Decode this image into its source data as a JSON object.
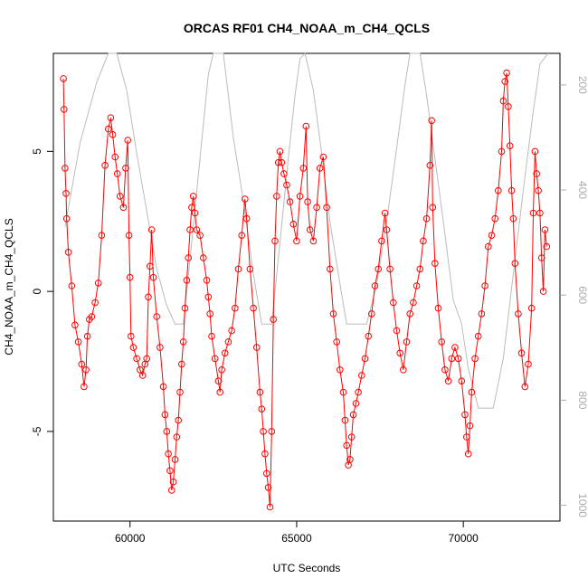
{
  "chart_data": {
    "type": "line",
    "title": "ORCAS RF01 CH4_NOAA_m_CH4_QCLS",
    "xlabel": "UTC Seconds",
    "ylabel": "CH4_NOAA_m_CH4_QCLS",
    "xlim": [
      57700,
      72900
    ],
    "ylim": [
      -8.2,
      8.5
    ],
    "y2lim": [
      1030,
      140
    ],
    "x_ticks": [
      60000,
      65000,
      70000
    ],
    "x_tick_labels": [
      "60000",
      "65000",
      "70000"
    ],
    "y_ticks": [
      -5,
      0,
      5
    ],
    "y_tick_labels": [
      "-5",
      "0",
      "5"
    ],
    "y2_ticks": [
      200,
      400,
      600,
      800,
      1000
    ],
    "y2_tick_labels": [
      "200",
      "400",
      "600",
      "800",
      "1000"
    ],
    "grid": false,
    "colors": {
      "primary": "#ff0000",
      "secondary": "#bbbbbb"
    },
    "series": [
      {
        "role": "primary",
        "marker": "open-circle",
        "points": [
          [
            58000,
            7.6
          ],
          [
            58020,
            6.5
          ],
          [
            58050,
            4.4
          ],
          [
            58080,
            3.5
          ],
          [
            58100,
            2.6
          ],
          [
            58150,
            1.4
          ],
          [
            58250,
            0.2
          ],
          [
            58350,
            -1.2
          ],
          [
            58450,
            -1.8
          ],
          [
            58550,
            -2.6
          ],
          [
            58620,
            -3.4
          ],
          [
            58680,
            -2.8
          ],
          [
            58720,
            -1.6
          ],
          [
            58780,
            -1.0
          ],
          [
            58850,
            -0.9
          ],
          [
            58950,
            -0.4
          ],
          [
            59050,
            0.3
          ],
          [
            59150,
            2.0
          ],
          [
            59250,
            4.5
          ],
          [
            59350,
            5.8
          ],
          [
            59420,
            6.2
          ],
          [
            59480,
            5.6
          ],
          [
            59550,
            4.8
          ],
          [
            59620,
            4.2
          ],
          [
            59700,
            3.4
          ],
          [
            59800,
            3.0
          ],
          [
            59870,
            4.4
          ],
          [
            59930,
            5.4
          ],
          [
            59970,
            2.0
          ],
          [
            60000,
            0.5
          ],
          [
            60030,
            -1.6
          ],
          [
            60100,
            -2.0
          ],
          [
            60200,
            -2.4
          ],
          [
            60300,
            -2.8
          ],
          [
            60380,
            -3.0
          ],
          [
            60450,
            -2.6
          ],
          [
            60500,
            -2.4
          ],
          [
            60550,
            -0.2
          ],
          [
            60600,
            0.9
          ],
          [
            60650,
            2.2
          ],
          [
            60700,
            0.5
          ],
          [
            60800,
            -0.9
          ],
          [
            60900,
            -2.0
          ],
          [
            61000,
            -3.4
          ],
          [
            61050,
            -4.4
          ],
          [
            61100,
            -5.0
          ],
          [
            61150,
            -5.8
          ],
          [
            61200,
            -6.4
          ],
          [
            61250,
            -7.1
          ],
          [
            61300,
            -6.8
          ],
          [
            61350,
            -6.0
          ],
          [
            61400,
            -5.2
          ],
          [
            61450,
            -4.6
          ],
          [
            61500,
            -3.6
          ],
          [
            61550,
            -2.6
          ],
          [
            61600,
            -1.8
          ],
          [
            61650,
            -0.6
          ],
          [
            61700,
            0.4
          ],
          [
            61750,
            1.2
          ],
          [
            61800,
            2.2
          ],
          [
            61850,
            3.0
          ],
          [
            61900,
            3.4
          ],
          [
            61950,
            2.8
          ],
          [
            62000,
            2.2
          ],
          [
            62100,
            2.0
          ],
          [
            62200,
            1.2
          ],
          [
            62300,
            0.4
          ],
          [
            62350,
            -0.2
          ],
          [
            62400,
            -0.8
          ],
          [
            62450,
            -1.6
          ],
          [
            62550,
            -2.4
          ],
          [
            62650,
            -3.2
          ],
          [
            62700,
            -3.6
          ],
          [
            62750,
            -2.8
          ],
          [
            62850,
            -2.2
          ],
          [
            62950,
            -1.8
          ],
          [
            63050,
            -1.4
          ],
          [
            63150,
            -0.6
          ],
          [
            63250,
            0.8
          ],
          [
            63350,
            2.0
          ],
          [
            63450,
            3.3
          ],
          [
            63500,
            2.6
          ],
          [
            63600,
            0.8
          ],
          [
            63700,
            -0.6
          ],
          [
            63800,
            -2.0
          ],
          [
            63900,
            -3.6
          ],
          [
            63950,
            -4.2
          ],
          [
            64000,
            -5.0
          ],
          [
            64050,
            -5.8
          ],
          [
            64100,
            -6.5
          ],
          [
            64150,
            -7.0
          ],
          [
            64200,
            -7.7
          ],
          [
            64250,
            -5.0
          ],
          [
            64300,
            -1.0
          ],
          [
            64350,
            1.8
          ],
          [
            64400,
            3.4
          ],
          [
            64450,
            4.6
          ],
          [
            64500,
            5.0
          ],
          [
            64550,
            4.6
          ],
          [
            64620,
            4.2
          ],
          [
            64700,
            3.8
          ],
          [
            64800,
            3.2
          ],
          [
            64900,
            2.4
          ],
          [
            65000,
            1.8
          ],
          [
            65100,
            3.4
          ],
          [
            65200,
            4.4
          ],
          [
            65280,
            5.9
          ],
          [
            65330,
            3.2
          ],
          [
            65400,
            2.2
          ],
          [
            65500,
            1.8
          ],
          [
            65600,
            3.0
          ],
          [
            65700,
            4.4
          ],
          [
            65800,
            4.8
          ],
          [
            65900,
            3.0
          ],
          [
            66000,
            0.8
          ],
          [
            66100,
            -0.8
          ],
          [
            66200,
            -1.8
          ],
          [
            66300,
            -2.8
          ],
          [
            66400,
            -3.6
          ],
          [
            66450,
            -4.6
          ],
          [
            66500,
            -5.5
          ],
          [
            66550,
            -6.2
          ],
          [
            66600,
            -6.0
          ],
          [
            66650,
            -5.2
          ],
          [
            66700,
            -4.4
          ],
          [
            66780,
            -4.0
          ],
          [
            66850,
            -3.6
          ],
          [
            66950,
            -3.0
          ],
          [
            67050,
            -2.4
          ],
          [
            67150,
            -1.6
          ],
          [
            67250,
            -0.8
          ],
          [
            67350,
            0.2
          ],
          [
            67450,
            0.8
          ],
          [
            67550,
            1.8
          ],
          [
            67650,
            2.8
          ],
          [
            67700,
            2.2
          ],
          [
            67800,
            0.8
          ],
          [
            67900,
            -0.4
          ],
          [
            68000,
            -1.4
          ],
          [
            68100,
            -2.2
          ],
          [
            68200,
            -2.8
          ],
          [
            68300,
            -1.8
          ],
          [
            68400,
            -0.8
          ],
          [
            68500,
            -0.4
          ],
          [
            68600,
            0.2
          ],
          [
            68700,
            0.8
          ],
          [
            68800,
            1.8
          ],
          [
            68900,
            2.6
          ],
          [
            69000,
            4.5
          ],
          [
            69050,
            6.1
          ],
          [
            69080,
            3.0
          ],
          [
            69150,
            1.0
          ],
          [
            69250,
            -0.6
          ],
          [
            69350,
            -1.8
          ],
          [
            69450,
            -2.8
          ],
          [
            69550,
            -3.2
          ],
          [
            69650,
            -2.4
          ],
          [
            69750,
            -2.0
          ],
          [
            69850,
            -2.4
          ],
          [
            69950,
            -3.2
          ],
          [
            70050,
            -4.4
          ],
          [
            70100,
            -5.2
          ],
          [
            70150,
            -5.8
          ],
          [
            70200,
            -4.8
          ],
          [
            70250,
            -3.6
          ],
          [
            70350,
            -2.4
          ],
          [
            70450,
            -1.6
          ],
          [
            70550,
            -0.8
          ],
          [
            70650,
            0.2
          ],
          [
            70750,
            1.6
          ],
          [
            70850,
            2.0
          ],
          [
            70950,
            2.6
          ],
          [
            71050,
            3.6
          ],
          [
            71150,
            5.0
          ],
          [
            71200,
            6.8
          ],
          [
            71250,
            7.5
          ],
          [
            71300,
            7.8
          ],
          [
            71350,
            6.6
          ],
          [
            71400,
            5.2
          ],
          [
            71450,
            3.6
          ],
          [
            71500,
            2.6
          ],
          [
            71550,
            1.0
          ],
          [
            71650,
            -0.8
          ],
          [
            71750,
            -2.2
          ],
          [
            71850,
            -3.4
          ],
          [
            71950,
            -2.6
          ],
          [
            72050,
            -0.6
          ],
          [
            72100,
            2.8
          ],
          [
            72150,
            5.0
          ],
          [
            72200,
            4.2
          ],
          [
            72250,
            3.6
          ],
          [
            72300,
            2.8
          ],
          [
            72350,
            1.2
          ],
          [
            72400,
            0.0
          ],
          [
            72450,
            2.2
          ],
          [
            72500,
            1.6
          ]
        ]
      },
      {
        "role": "secondary",
        "points": [
          [
            58050,
            470
          ],
          [
            58500,
            310
          ],
          [
            59000,
            195
          ],
          [
            59350,
            140
          ],
          [
            59600,
            140
          ],
          [
            59900,
            210
          ],
          [
            60200,
            330
          ],
          [
            60500,
            440
          ],
          [
            60800,
            550
          ],
          [
            61100,
            620
          ],
          [
            61350,
            655
          ],
          [
            61600,
            655
          ],
          [
            61850,
            500
          ],
          [
            62100,
            340
          ],
          [
            62350,
            180
          ],
          [
            62500,
            140
          ],
          [
            62800,
            140
          ],
          [
            63100,
            300
          ],
          [
            63400,
            420
          ],
          [
            63700,
            560
          ],
          [
            63950,
            655
          ],
          [
            64250,
            655
          ],
          [
            64500,
            500
          ],
          [
            64750,
            340
          ],
          [
            64950,
            220
          ],
          [
            65100,
            150
          ],
          [
            65250,
            140
          ],
          [
            65500,
            210
          ],
          [
            65750,
            330
          ],
          [
            66000,
            460
          ],
          [
            66250,
            560
          ],
          [
            66500,
            655
          ],
          [
            66800,
            655
          ],
          [
            67100,
            655
          ],
          [
            67400,
            580
          ],
          [
            67700,
            460
          ],
          [
            68000,
            320
          ],
          [
            68250,
            200
          ],
          [
            68400,
            140
          ],
          [
            68700,
            140
          ],
          [
            68900,
            220
          ],
          [
            69150,
            340
          ],
          [
            69400,
            460
          ],
          [
            69700,
            610
          ],
          [
            69950,
            655
          ],
          [
            70150,
            740
          ],
          [
            70450,
            815
          ],
          [
            70900,
            815
          ],
          [
            71200,
            720
          ],
          [
            71500,
            560
          ],
          [
            71800,
            400
          ],
          [
            72100,
            250
          ],
          [
            72300,
            160
          ],
          [
            72550,
            130
          ]
        ]
      }
    ]
  }
}
